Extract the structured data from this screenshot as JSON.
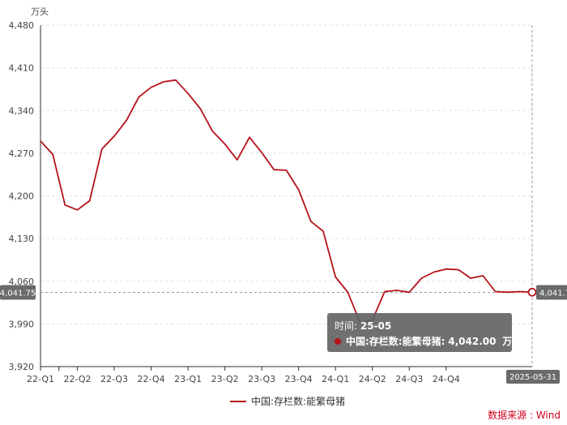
{
  "chart_data": {
    "type": "line",
    "unit": "万头",
    "ylim": [
      3920,
      4480
    ],
    "y_ticks": [
      "4,480",
      "4,410",
      "4,340",
      "4,270",
      "4,200",
      "4,130",
      "4,060",
      "3,990",
      "3,920"
    ],
    "y_tick_values": [
      4480,
      4410,
      4340,
      4270,
      4200,
      4130,
      4060,
      3990,
      3920
    ],
    "x_ticks": [
      "22-Q1",
      "22-Q2",
      "22-Q3",
      "22-Q4",
      "23-Q1",
      "23-Q2",
      "23-Q3",
      "23-Q4",
      "24-Q1",
      "24-Q2",
      "24-Q3",
      "24-Q4"
    ],
    "x_tick_month_index": [
      0,
      3,
      6,
      9,
      12,
      15,
      18,
      21,
      24,
      27,
      30,
      33
    ],
    "series": [
      {
        "name": "中国:存栏数:能繁母猪",
        "color": "#b5121b",
        "x": [
          "22-01",
          "22-02",
          "22-03",
          "22-04",
          "22-05",
          "22-06",
          "22-07",
          "22-08",
          "22-09",
          "22-10",
          "22-11",
          "22-12",
          "23-01",
          "23-02",
          "23-03",
          "23-04",
          "23-05",
          "23-06",
          "23-07",
          "23-08",
          "23-09",
          "23-10",
          "23-11",
          "23-12",
          "24-01",
          "24-02",
          "24-03",
          "24-04",
          "24-05",
          "24-06",
          "24-07",
          "24-08",
          "24-09",
          "24-10",
          "24-11",
          "24-12",
          "25-01",
          "25-02",
          "25-03",
          "25-04",
          "25-05"
        ],
        "values": [
          4290,
          4268,
          4185,
          4177,
          4192,
          4277,
          4298,
          4324,
          4362,
          4378,
          4387,
          4390,
          4368,
          4343,
          4306,
          4285,
          4259,
          4296,
          4271,
          4243,
          4242,
          4210,
          4158,
          4142,
          4067,
          4042,
          3992,
          3996,
          4043,
          4045,
          4042,
          4065,
          4075,
          4080,
          4079,
          4065,
          4069,
          4043,
          4042,
          4043,
          4042
        ]
      }
    ],
    "crosshair_value_label": "4,041.75",
    "crosshair_value": 4041.75,
    "crosshair_date_label": "2025-05-31",
    "tooltip": {
      "time_label": "时间:",
      "time_value": "25-05",
      "series_label": "中国:存栏数:能繁母猪:",
      "value": "4,042.00",
      "unit": "万头"
    },
    "grid": true,
    "legend_position": "bottom-center"
  },
  "source_text": "数据来源 : Wind"
}
